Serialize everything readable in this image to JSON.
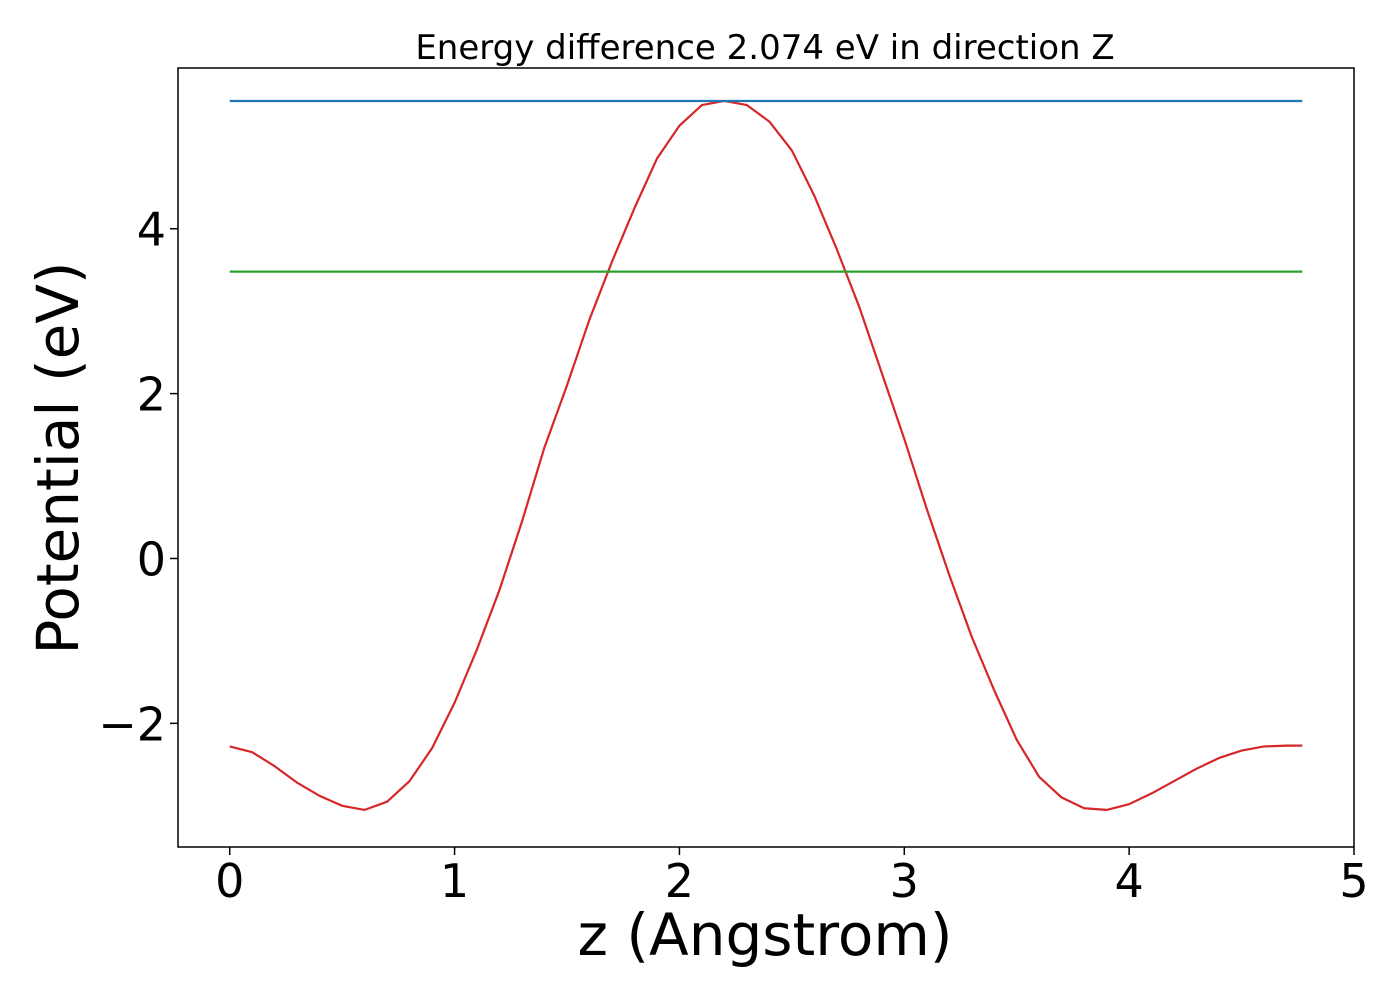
{
  "chart_data": {
    "type": "line",
    "title": "Energy difference 2.074 eV in direction Z",
    "xlabel": "z (Angstrom)",
    "ylabel": "Potential (eV)",
    "xlim": [
      -0.23,
      5.0
    ],
    "ylim": [
      -3.5,
      5.95
    ],
    "xticks": [
      0,
      1,
      2,
      3,
      4,
      5
    ],
    "xtick_labels": [
      "0",
      "1",
      "2",
      "3",
      "4",
      "5"
    ],
    "yticks": [
      -2,
      0,
      2,
      4
    ],
    "ytick_labels": [
      "−2",
      "0",
      "2",
      "4"
    ],
    "grid": false,
    "series": [
      {
        "color": "#d62728",
        "x": [
          0,
          0.1,
          0.2,
          0.3,
          0.4,
          0.5,
          0.6,
          0.7,
          0.8,
          0.9,
          1.0,
          1.1,
          1.2,
          1.3,
          1.4,
          1.5,
          1.6,
          1.7,
          1.8,
          1.9,
          2.0,
          2.1,
          2.2,
          2.3,
          2.4,
          2.5,
          2.6,
          2.7,
          2.8,
          2.9,
          3.0,
          3.1,
          3.2,
          3.3,
          3.4,
          3.5,
          3.6,
          3.7,
          3.8,
          3.9,
          4.0,
          4.1,
          4.2,
          4.3,
          4.4,
          4.5,
          4.6,
          4.7,
          4.77
        ],
        "y": [
          -2.28,
          -2.35,
          -2.52,
          -2.72,
          -2.88,
          -3.0,
          -3.05,
          -2.95,
          -2.7,
          -2.3,
          -1.75,
          -1.1,
          -0.38,
          0.45,
          1.35,
          2.1,
          2.9,
          3.6,
          4.25,
          4.85,
          5.25,
          5.5,
          5.55,
          5.5,
          5.3,
          4.95,
          4.4,
          3.75,
          3.05,
          2.25,
          1.45,
          0.6,
          -0.2,
          -0.95,
          -1.6,
          -2.2,
          -2.65,
          -2.9,
          -3.03,
          -3.05,
          -2.98,
          -2.85,
          -2.7,
          -2.55,
          -2.42,
          -2.33,
          -2.28,
          -2.27,
          -2.27
        ]
      },
      {
        "color": "#1f77b4",
        "x": [
          0,
          4.77
        ],
        "y": [
          5.55,
          5.55
        ]
      },
      {
        "color": "#2ca02c",
        "x": [
          0,
          4.77
        ],
        "y": [
          3.48,
          3.48
        ]
      }
    ]
  }
}
